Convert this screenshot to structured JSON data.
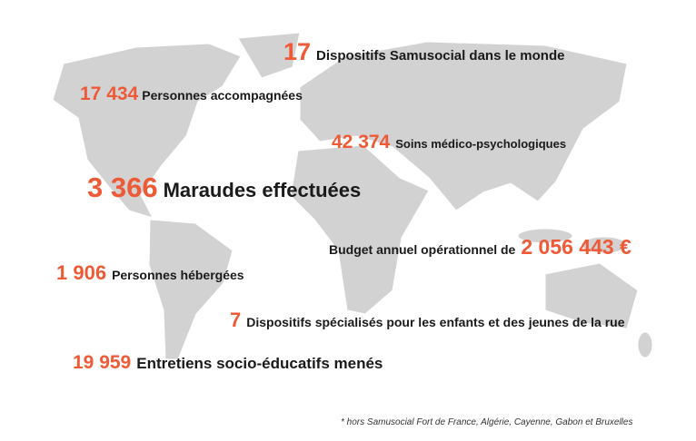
{
  "stats": [
    {
      "number": "17",
      "label": "Dispositifs Samusocial dans le monde"
    },
    {
      "number": "17 434",
      "label": "Personnes accompagnées"
    },
    {
      "number": "42 374",
      "label": "Soins médico-psychologiques"
    },
    {
      "number": "3 366",
      "label": "Maraudes effectuées"
    },
    {
      "label": "Budget annuel opérationnel de",
      "number": "2 056 443 €"
    },
    {
      "number": "1 906",
      "label": "Personnes hébergées"
    },
    {
      "number": "7",
      "label": "Dispositifs spécialisés pour les enfants et des jeunes de la rue"
    },
    {
      "number": "19 959",
      "label": "Entretiens socio-éducatifs menés"
    }
  ],
  "footnote": "* hors Samusocial Fort de France, Algérie, Cayenne, Gabon et Bruxelles"
}
